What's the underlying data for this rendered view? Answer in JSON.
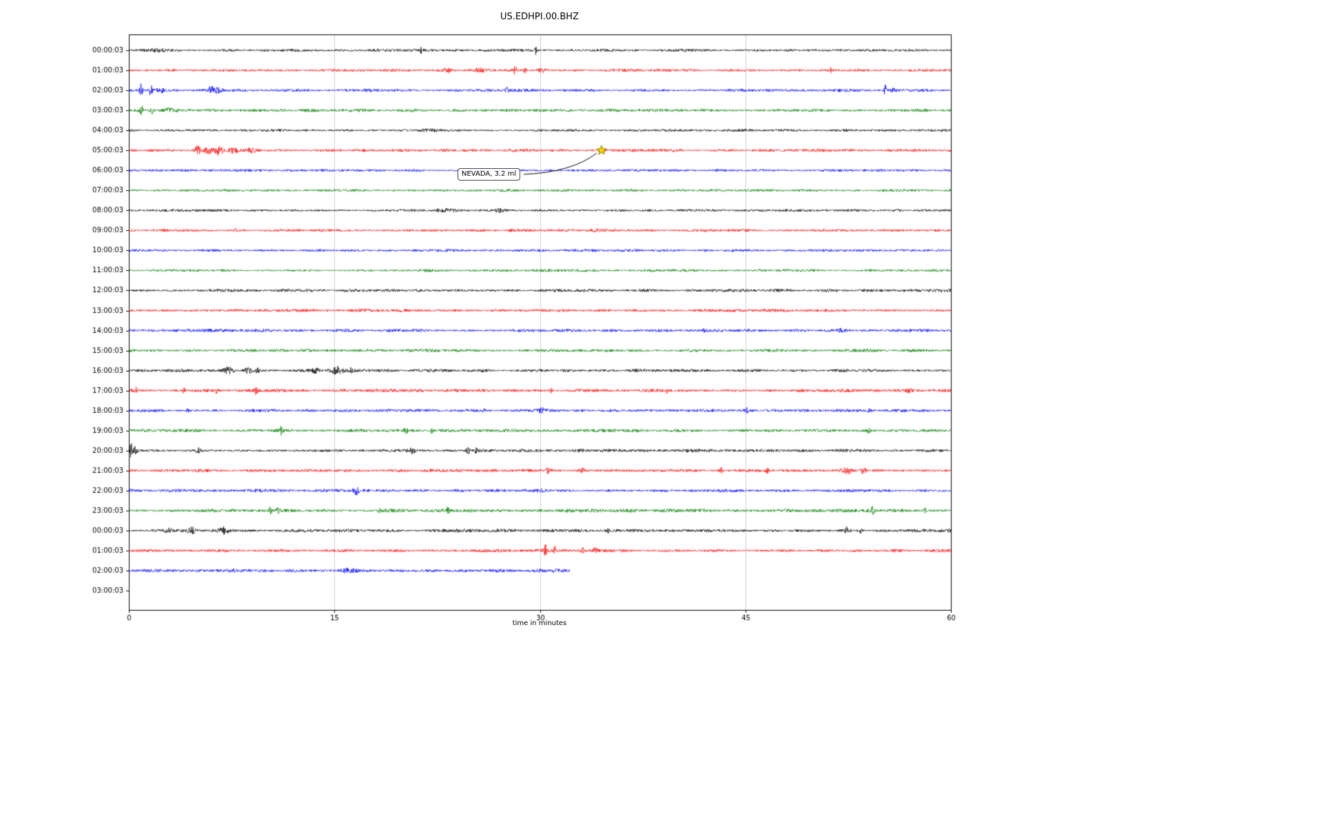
{
  "chart_data": {
    "type": "line",
    "title": "US.EDHPI.00.BHZ",
    "xlabel": "time in minutes",
    "ylabel": "",
    "xlim": [
      0,
      60
    ],
    "x_ticks": [
      0,
      15,
      30,
      45,
      60
    ],
    "grid": "vertical",
    "legend": "none",
    "trace_color_cycle": [
      "#000000",
      "#ff0000",
      "#0000ff",
      "#008000"
    ],
    "annotation": {
      "text": "NEVADA, 3.2 ml",
      "row_label": "05:00:03",
      "time_minutes": 34.5,
      "marker": "star",
      "marker_color": "#ffd700",
      "marker_edge_color": "#7a7a00"
    },
    "rows": [
      {
        "label": "00:00:03",
        "color": "#000000",
        "duration": 60,
        "amp": 1.6,
        "events": [
          [
            21.3,
            5,
            0.06
          ],
          [
            29.7,
            6,
            0.06
          ],
          [
            2.0,
            1.2,
            0.6
          ]
        ]
      },
      {
        "label": "01:00:03",
        "color": "#ff0000",
        "duration": 60,
        "amp": 1.6,
        "events": [
          [
            23.3,
            3,
            0.25
          ],
          [
            25.7,
            2.5,
            0.4
          ],
          [
            28.2,
            6.5,
            0.12
          ],
          [
            28.9,
            5,
            0.1
          ],
          [
            30.2,
            2.5,
            0.3
          ],
          [
            51.2,
            2.8,
            0.08
          ]
        ]
      },
      {
        "label": "02:00:03",
        "color": "#0000ff",
        "duration": 60,
        "amp": 1.7,
        "events": [
          [
            0.9,
            9,
            0.1
          ],
          [
            1.6,
            7,
            0.12
          ],
          [
            2.3,
            3,
            0.3
          ],
          [
            6.0,
            8,
            0.15
          ],
          [
            6.5,
            4,
            0.3
          ],
          [
            27.6,
            3.5,
            0.1
          ],
          [
            55.2,
            8,
            0.1
          ],
          [
            55.8,
            3,
            0.2
          ]
        ]
      },
      {
        "label": "03:00:03",
        "color": "#008000",
        "duration": 60,
        "amp": 1.8,
        "events": [
          [
            0.9,
            5,
            0.12
          ],
          [
            1.7,
            4,
            0.1
          ],
          [
            3,
            2,
            0.4
          ]
        ]
      },
      {
        "label": "04:00:03",
        "color": "#000000",
        "duration": 60,
        "amp": 1.5,
        "events": [
          [
            22,
            1.2,
            1.0
          ]
        ]
      },
      {
        "label": "05:00:03",
        "color": "#ff0000",
        "duration": 60,
        "amp": 1.7,
        "events": [
          [
            5.0,
            6,
            0.25
          ],
          [
            5.8,
            4,
            0.3
          ],
          [
            6.6,
            6.5,
            0.3
          ],
          [
            7.6,
            3.5,
            0.4
          ],
          [
            9.0,
            2.5,
            0.4
          ],
          [
            34.5,
            2,
            0.15
          ]
        ]
      },
      {
        "label": "06:00:03",
        "color": "#0000ff",
        "duration": 60,
        "amp": 1.4,
        "events": []
      },
      {
        "label": "07:00:03",
        "color": "#008000",
        "duration": 60,
        "amp": 1.5,
        "events": []
      },
      {
        "label": "08:00:03",
        "color": "#000000",
        "duration": 60,
        "amp": 1.5,
        "events": [
          [
            23,
            1.5,
            0.8
          ],
          [
            27,
            1.5,
            0.5
          ]
        ]
      },
      {
        "label": "09:00:03",
        "color": "#ff0000",
        "duration": 60,
        "amp": 1.6,
        "events": [
          [
            7.8,
            2.5,
            0.1
          ],
          [
            31,
            2,
            0.15
          ],
          [
            34,
            1.5,
            0.3
          ]
        ]
      },
      {
        "label": "10:00:03",
        "color": "#0000ff",
        "duration": 60,
        "amp": 1.5,
        "events": []
      },
      {
        "label": "11:00:03",
        "color": "#008000",
        "duration": 60,
        "amp": 1.5,
        "events": []
      },
      {
        "label": "12:00:03",
        "color": "#000000",
        "duration": 60,
        "amp": 1.7,
        "events": []
      },
      {
        "label": "13:00:03",
        "color": "#ff0000",
        "duration": 60,
        "amp": 1.7,
        "events": []
      },
      {
        "label": "14:00:03",
        "color": "#0000ff",
        "duration": 60,
        "amp": 1.8,
        "events": [
          [
            42,
            2,
            0.2
          ],
          [
            52,
            2,
            0.2
          ],
          [
            57,
            1.8,
            0.2
          ]
        ]
      },
      {
        "label": "15:00:03",
        "color": "#008000",
        "duration": 60,
        "amp": 1.8,
        "events": []
      },
      {
        "label": "16:00:03",
        "color": "#000000",
        "duration": 60,
        "amp": 1.8,
        "events": [
          [
            7.3,
            4.5,
            0.35
          ],
          [
            8.7,
            3.5,
            0.25
          ],
          [
            9.4,
            5,
            0.1
          ],
          [
            13.6,
            3.5,
            0.3
          ],
          [
            15.2,
            4.5,
            0.45
          ],
          [
            16.2,
            3,
            0.2
          ]
        ]
      },
      {
        "label": "17:00:03",
        "color": "#ff0000",
        "duration": 60,
        "amp": 1.9,
        "events": [
          [
            0.5,
            3.5,
            0.1
          ],
          [
            4.0,
            3.5,
            0.12
          ],
          [
            6.4,
            3,
            0.1
          ],
          [
            9.3,
            5,
            0.08
          ],
          [
            30.8,
            3.5,
            0.1
          ],
          [
            39.3,
            4,
            0.1
          ],
          [
            57,
            2,
            0.2
          ]
        ]
      },
      {
        "label": "18:00:03",
        "color": "#0000ff",
        "duration": 60,
        "amp": 1.8,
        "events": [
          [
            4.3,
            3.5,
            0.1
          ],
          [
            25.9,
            3,
            0.12
          ],
          [
            30.1,
            4,
            0.15
          ],
          [
            45.1,
            3,
            0.1
          ],
          [
            54,
            2.5,
            0.15
          ]
        ]
      },
      {
        "label": "19:00:03",
        "color": "#008000",
        "duration": 60,
        "amp": 1.8,
        "events": [
          [
            11.1,
            4.5,
            0.12
          ],
          [
            20.2,
            4,
            0.15
          ],
          [
            22.1,
            3.5,
            0.12
          ],
          [
            54,
            2.5,
            0.15
          ]
        ]
      },
      {
        "label": "20:00:03",
        "color": "#000000",
        "duration": 60,
        "amp": 1.8,
        "events": [
          [
            0.15,
            13,
            0.08
          ],
          [
            0.5,
            5,
            0.15
          ],
          [
            5.0,
            3.5,
            0.25
          ],
          [
            20.6,
            5,
            0.3
          ],
          [
            24.8,
            6,
            0.15
          ],
          [
            25.3,
            3,
            0.2
          ]
        ]
      },
      {
        "label": "21:00:03",
        "color": "#ff0000",
        "duration": 60,
        "amp": 1.8,
        "events": [
          [
            30.6,
            3.5,
            0.2
          ],
          [
            33.1,
            4.5,
            0.15
          ],
          [
            43.2,
            4.5,
            0.12
          ],
          [
            46.6,
            3.5,
            0.15
          ],
          [
            52.4,
            5,
            0.3
          ],
          [
            53.6,
            4,
            0.2
          ]
        ]
      },
      {
        "label": "22:00:03",
        "color": "#0000ff",
        "duration": 60,
        "amp": 1.8,
        "events": [
          [
            16.6,
            4.5,
            0.2
          ],
          [
            30,
            1.5,
            0.4
          ]
        ]
      },
      {
        "label": "23:00:03",
        "color": "#008000",
        "duration": 60,
        "amp": 2.0,
        "events": [
          [
            7.6,
            3,
            0.1
          ],
          [
            10.3,
            4.5,
            0.12
          ],
          [
            10.9,
            4.5,
            0.1
          ],
          [
            18.3,
            3.5,
            0.12
          ],
          [
            23.3,
            4.5,
            0.1
          ],
          [
            54.3,
            5,
            0.12
          ],
          [
            58.1,
            3,
            0.1
          ]
        ]
      },
      {
        "label": "00:00:03",
        "color": "#000000",
        "duration": 60,
        "amp": 1.8,
        "events": [
          [
            2.9,
            3.5,
            0.2
          ],
          [
            4.6,
            4.5,
            0.3
          ],
          [
            6.9,
            4,
            0.35
          ],
          [
            35,
            2.5,
            0.1
          ],
          [
            52.4,
            5,
            0.25
          ],
          [
            53.4,
            3.5,
            0.2
          ]
        ]
      },
      {
        "label": "01:00:03",
        "color": "#ff0000",
        "duration": 60,
        "amp": 1.8,
        "events": [
          [
            30.4,
            7,
            0.12
          ],
          [
            31.1,
            5,
            0.1
          ],
          [
            33.1,
            8,
            0.1
          ],
          [
            34,
            3,
            0.2
          ]
        ]
      },
      {
        "label": "02:00:03",
        "color": "#0000ff",
        "duration": 32.2,
        "amp": 2.0,
        "events": [
          [
            16,
            1.5,
            0.6
          ]
        ]
      },
      {
        "label": "03:00:03",
        "color": "#008000",
        "duration": 0,
        "amp": 0,
        "events": []
      }
    ]
  }
}
